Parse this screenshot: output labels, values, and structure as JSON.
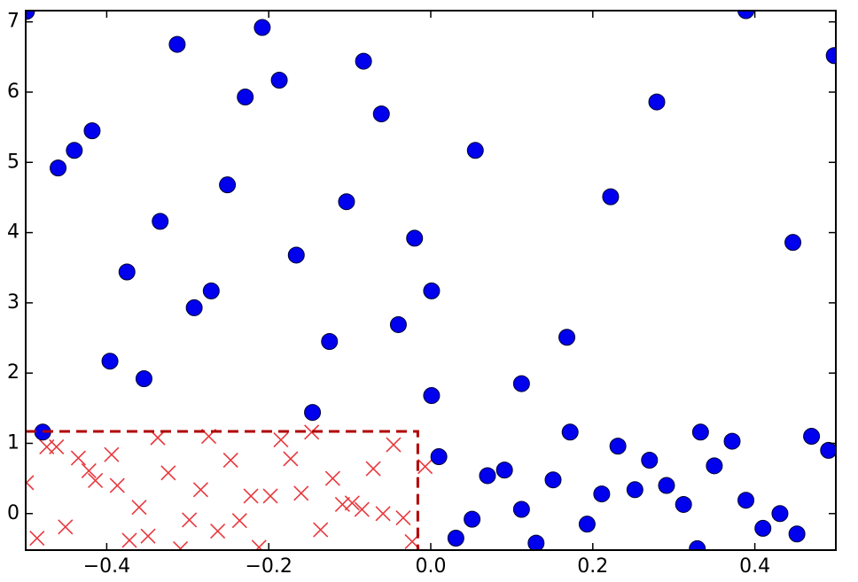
{
  "chart_data": {
    "type": "scatter",
    "xlim": [
      -0.5,
      0.5
    ],
    "ylim": [
      -0.52,
      7.16
    ],
    "xticks": [
      {
        "value": -0.4,
        "label": "−0.4"
      },
      {
        "value": -0.2,
        "label": "−0.2"
      },
      {
        "value": 0,
        "label": "0.0"
      },
      {
        "value": 0.2,
        "label": "0.2"
      },
      {
        "value": 0.4,
        "label": "0.4"
      }
    ],
    "yticks": [
      0,
      1,
      2,
      3,
      4,
      5,
      6,
      7
    ],
    "threshold": {
      "x": -0.016,
      "y": 1.17,
      "color": "#b00000"
    },
    "series": [
      {
        "marker": "x",
        "color": "#e8383d",
        "x": [
          -0.499,
          -0.486,
          -0.474,
          -0.462,
          -0.451,
          -0.435,
          -0.422,
          -0.414,
          -0.394,
          -0.387,
          -0.372,
          -0.36,
          -0.349,
          -0.337,
          -0.324,
          -0.309,
          -0.298,
          -0.284,
          -0.274,
          -0.263,
          -0.247,
          -0.236,
          -0.222,
          -0.212,
          -0.198,
          -0.185,
          -0.173,
          -0.16,
          -0.147,
          -0.136,
          -0.121,
          -0.109,
          -0.097,
          -0.085,
          -0.071,
          -0.059,
          -0.046,
          -0.034,
          -0.023,
          -0.007
        ],
        "y": [
          0.44,
          -0.35,
          0.95,
          0.95,
          -0.19,
          0.79,
          0.61,
          0.47,
          0.84,
          0.4,
          -0.38,
          0.09,
          -0.32,
          1.08,
          0.58,
          -0.5,
          -0.09,
          0.34,
          1.1,
          -0.25,
          0.76,
          -0.1,
          0.25,
          -0.48,
          0.25,
          1.05,
          0.78,
          0.29,
          1.16,
          -0.23,
          0.5,
          0.13,
          0.15,
          0.06,
          0.64,
          0.0,
          0.98,
          -0.06,
          -0.4,
          0.67
        ]
      },
      {
        "marker": "o",
        "color": "#0000ee",
        "x": [
          -0.499,
          -0.46,
          -0.44,
          -0.418,
          -0.479,
          -0.375,
          -0.396,
          -0.354,
          -0.334,
          -0.313,
          -0.292,
          -0.271,
          -0.251,
          -0.229,
          -0.208,
          -0.187,
          -0.166,
          -0.146,
          -0.125,
          -0.104,
          -0.083,
          -0.061,
          -0.04,
          -0.02,
          0.001,
          0.001,
          0.01,
          0.031,
          0.051,
          0.055,
          0.07,
          0.091,
          0.112,
          0.112,
          0.13,
          0.151,
          0.168,
          0.172,
          0.193,
          0.211,
          0.222,
          0.231,
          0.252,
          0.27,
          0.279,
          0.291,
          0.312,
          0.329,
          0.333,
          0.35,
          0.372,
          0.389,
          0.389,
          0.41,
          0.431,
          0.447,
          0.452,
          0.47,
          0.491,
          0.498
        ],
        "y": [
          7.15,
          4.92,
          5.17,
          5.45,
          1.16,
          3.44,
          2.17,
          1.92,
          4.16,
          6.68,
          2.93,
          3.17,
          4.68,
          5.93,
          6.92,
          6.17,
          3.68,
          1.44,
          2.45,
          4.44,
          6.44,
          5.69,
          2.69,
          3.92,
          3.17,
          1.68,
          0.81,
          -0.35,
          -0.08,
          5.17,
          0.54,
          0.62,
          0.06,
          1.85,
          -0.42,
          0.48,
          2.51,
          1.16,
          -0.15,
          0.28,
          4.51,
          0.96,
          0.34,
          0.76,
          5.86,
          0.4,
          0.13,
          -0.5,
          1.16,
          0.68,
          1.03,
          0.19,
          7.16,
          -0.21,
          0.0,
          3.86,
          -0.29,
          1.1,
          0.9,
          6.52
        ]
      }
    ]
  }
}
